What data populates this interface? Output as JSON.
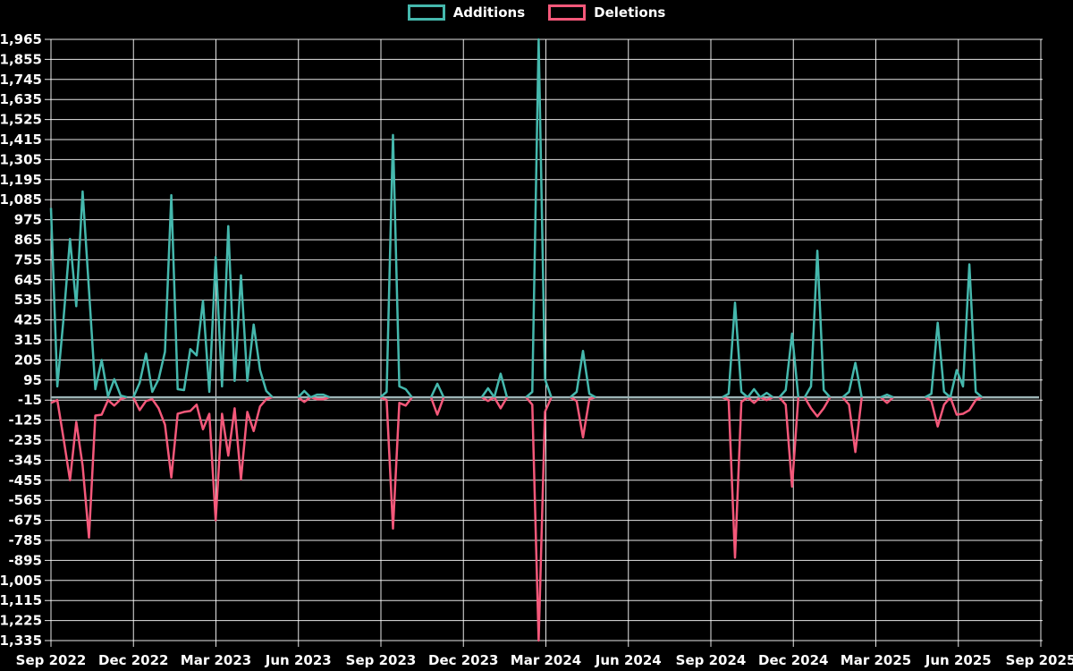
{
  "legend": {
    "additions_label": "Additions",
    "deletions_label": "Deletions"
  },
  "colors": {
    "background": "#000000",
    "additions": "#45b8ad",
    "deletions": "#f4587a",
    "zeroline": "#9db4b6",
    "gridline": "#ffffff",
    "tick_text": "#ffffff"
  },
  "chart_data": {
    "type": "line",
    "title": "",
    "xlabel": "",
    "ylabel": "",
    "grid": true,
    "legend_position": "top-center",
    "ylim": [
      -1335,
      1965
    ],
    "y_tick_step": 110,
    "y_ticks": [
      1965,
      1855,
      1745,
      1635,
      1525,
      1415,
      1305,
      1195,
      1085,
      975,
      865,
      755,
      645,
      535,
      425,
      315,
      205,
      95,
      -15,
      -125,
      -235,
      -345,
      -455,
      -565,
      -675,
      -785,
      -895,
      -1005,
      -1115,
      -1225,
      -1335
    ],
    "y_tick_labels": [
      "1,965",
      "1,855",
      "1,745",
      "1,635",
      "1,525",
      "1,415",
      "1,305",
      "1,195",
      "1,085",
      "975",
      "865",
      "755",
      "645",
      "535",
      "425",
      "315",
      "205",
      "95",
      "-15",
      "-125",
      "-235",
      "-345",
      "-455",
      "-565",
      "-675",
      "-785",
      "-895",
      "-1,005",
      "-1,115",
      "-1,225",
      "-1,335"
    ],
    "x_tick_labels": [
      "Sep 2022",
      "Dec 2022",
      "Mar 2023",
      "Jun 2023",
      "Sep 2023",
      "Dec 2023",
      "Mar 2024",
      "Jun 2024",
      "Sep 2024",
      "Dec 2024",
      "Mar 2025",
      "Jun 2025",
      "Sep 2025"
    ],
    "x_unit": "week",
    "series": [
      {
        "name": "Additions",
        "values": [
          1040,
          60,
          440,
          870,
          500,
          1130,
          590,
          45,
          205,
          5,
          100,
          10,
          0,
          0,
          80,
          240,
          30,
          100,
          250,
          1110,
          45,
          40,
          265,
          230,
          530,
          30,
          770,
          60,
          940,
          90,
          670,
          90,
          400,
          150,
          35,
          0,
          0,
          0,
          0,
          0,
          35,
          0,
          15,
          15,
          0,
          0,
          0,
          0,
          0,
          0,
          0,
          0,
          0,
          30,
          1440,
          60,
          45,
          0,
          0,
          0,
          0,
          75,
          0,
          0,
          0,
          0,
          0,
          0,
          0,
          50,
          0,
          130,
          0,
          0,
          0,
          0,
          30,
          1965,
          100,
          0,
          0,
          0,
          0,
          30,
          255,
          20,
          0,
          0,
          0,
          0,
          0,
          0,
          0,
          0,
          0,
          0,
          0,
          0,
          0,
          0,
          0,
          0,
          0,
          0,
          0,
          0,
          0,
          20,
          520,
          30,
          0,
          45,
          0,
          25,
          0,
          0,
          40,
          350,
          0,
          0,
          60,
          805,
          40,
          0,
          0,
          0,
          30,
          190,
          0,
          0,
          0,
          0,
          15,
          0,
          0,
          0,
          0,
          0,
          0,
          20,
          410,
          30,
          0,
          150,
          60,
          730,
          30,
          0,
          0,
          0,
          0,
          0,
          0,
          0,
          0,
          0,
          0
        ]
      },
      {
        "name": "Deletions",
        "values": [
          -30,
          -15,
          -230,
          -455,
          -135,
          -375,
          -770,
          -100,
          -95,
          -15,
          -45,
          -10,
          0,
          0,
          -70,
          -20,
          -10,
          -60,
          -150,
          -440,
          -90,
          -80,
          -75,
          -40,
          -175,
          -90,
          -675,
          -90,
          -320,
          -60,
          -450,
          -80,
          -185,
          -50,
          -10,
          0,
          0,
          0,
          0,
          0,
          -25,
          0,
          -10,
          -10,
          0,
          0,
          0,
          0,
          0,
          0,
          0,
          0,
          0,
          -15,
          -720,
          -30,
          -45,
          0,
          0,
          0,
          0,
          -95,
          0,
          0,
          0,
          0,
          0,
          0,
          0,
          -20,
          0,
          -60,
          0,
          0,
          0,
          0,
          -40,
          -1335,
          -80,
          0,
          0,
          0,
          0,
          -20,
          -220,
          -10,
          0,
          0,
          0,
          0,
          0,
          0,
          0,
          0,
          0,
          0,
          0,
          0,
          0,
          0,
          0,
          0,
          0,
          0,
          0,
          0,
          0,
          -15,
          -880,
          -25,
          0,
          -30,
          0,
          -15,
          0,
          0,
          -40,
          -490,
          0,
          0,
          -60,
          -105,
          -60,
          0,
          0,
          0,
          -40,
          -300,
          0,
          0,
          0,
          0,
          -30,
          0,
          0,
          0,
          0,
          0,
          0,
          -20,
          -160,
          -40,
          0,
          -95,
          -90,
          -70,
          -15,
          0,
          0,
          0,
          0,
          0,
          0,
          0,
          0,
          0,
          0
        ]
      }
    ]
  }
}
